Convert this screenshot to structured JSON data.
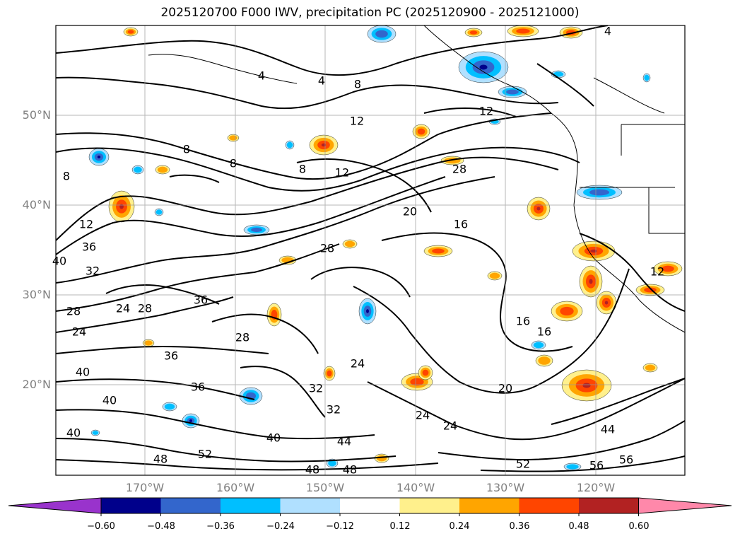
{
  "title": "2025120700 F000 IWV, precipitation PC (2025120900 - 2025121000)",
  "axes": {
    "lat_labels": [
      "50°N",
      "40°N",
      "30°N",
      "20°N"
    ],
    "lon_labels": [
      "170°W",
      "160°W",
      "150°W",
      "140°W",
      "130°W",
      "120°W"
    ]
  },
  "colorbar": {
    "colors": [
      "#9933cc",
      "#00008b",
      "#3366cc",
      "#00bfff",
      "#b0e0ff",
      "#ffffff",
      "#fff08c",
      "#ffa500",
      "#ff4500",
      "#b22222",
      "#ff88aa"
    ],
    "tick_labels": [
      "−0.60",
      "−0.48",
      "−0.36",
      "−0.24",
      "−0.12",
      "0.12",
      "0.24",
      "0.36",
      "0.48",
      "0.60"
    ]
  },
  "contour_labels": [
    "4",
    "4",
    "4",
    "8",
    "8",
    "8",
    "8",
    "8",
    "12",
    "12",
    "12",
    "12",
    "12",
    "16",
    "16",
    "16",
    "20",
    "20",
    "24",
    "24",
    "24",
    "24",
    "24",
    "28",
    "28",
    "28",
    "28",
    "28",
    "32",
    "32",
    "32",
    "36",
    "36",
    "36",
    "36",
    "40",
    "40",
    "40",
    "40",
    "40",
    "44",
    "44",
    "48",
    "48",
    "48",
    "52",
    "52",
    "56",
    "56"
  ]
}
